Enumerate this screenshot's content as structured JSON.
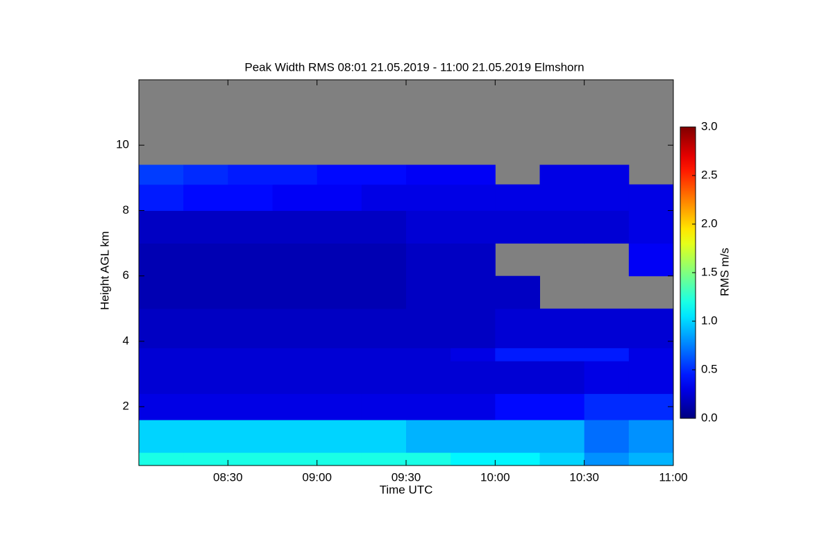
{
  "chart_data": {
    "type": "heatmap",
    "title": "Peak Width RMS   08:01 21.05.2019 - 11:00 21.05.2019 Elmshorn",
    "x_label": "Time UTC",
    "y_label": "Height AGL km",
    "xlim": [
      "08:00",
      "11:00"
    ],
    "xticks": [
      "08:30",
      "09:00",
      "09:30",
      "10:00",
      "10:30",
      "11:00"
    ],
    "ylim": [
      0.2,
      12.0
    ],
    "yticks": [
      2,
      4,
      6,
      8,
      10
    ],
    "x_edges": [
      "08:00",
      "08:15",
      "08:30",
      "08:45",
      "09:00",
      "09:15",
      "09:30",
      "09:45",
      "10:00",
      "10:15",
      "10:30",
      "10:45",
      "11:00"
    ],
    "y_edges": [
      0.2,
      0.6,
      1.6,
      2.4,
      3.4,
      3.8,
      5.0,
      6.0,
      7.0,
      8.0,
      8.8,
      9.4,
      12.0
    ],
    "z": [
      [
        1.2,
        1.2,
        1.2,
        1.2,
        1.2,
        1.2,
        1.2,
        1.1,
        1.1,
        1.0,
        0.8,
        0.9
      ],
      [
        1.0,
        1.0,
        1.0,
        1.0,
        1.0,
        1.0,
        0.9,
        0.9,
        0.9,
        0.9,
        0.7,
        0.8
      ],
      [
        0.3,
        0.3,
        0.3,
        0.3,
        0.3,
        0.3,
        0.3,
        0.3,
        0.4,
        0.4,
        0.5,
        0.5
      ],
      [
        0.25,
        0.25,
        0.25,
        0.25,
        0.25,
        0.25,
        0.25,
        0.25,
        0.25,
        0.25,
        0.3,
        0.3
      ],
      [
        0.25,
        0.25,
        0.25,
        0.25,
        0.25,
        0.25,
        0.25,
        0.3,
        0.45,
        0.45,
        0.45,
        0.3
      ],
      [
        0.2,
        0.2,
        0.2,
        0.2,
        0.2,
        0.2,
        0.2,
        0.2,
        0.25,
        0.25,
        0.25,
        0.25
      ],
      [
        0.15,
        0.15,
        0.15,
        0.15,
        0.15,
        0.15,
        0.2,
        0.2,
        0.2,
        null,
        null,
        null
      ],
      [
        0.15,
        0.15,
        0.15,
        0.15,
        0.15,
        0.15,
        0.2,
        0.2,
        null,
        null,
        null,
        0.35
      ],
      [
        0.2,
        0.2,
        0.2,
        0.2,
        0.2,
        0.2,
        0.25,
        0.25,
        0.25,
        0.25,
        0.25,
        0.3
      ],
      [
        0.45,
        0.4,
        0.4,
        0.35,
        0.35,
        0.3,
        0.3,
        0.3,
        0.3,
        0.3,
        0.3,
        0.3
      ],
      [
        0.55,
        0.5,
        0.45,
        0.45,
        0.4,
        0.4,
        0.35,
        0.35,
        null,
        0.3,
        0.3,
        null
      ],
      [
        null,
        null,
        null,
        null,
        null,
        null,
        null,
        null,
        null,
        null,
        null,
        null
      ]
    ],
    "colormap": "jet",
    "missing_color": "#808080",
    "colorbar": {
      "label": "RMS m/s",
      "lim": [
        0.0,
        3.0
      ],
      "ticks": [
        {
          "value": 0,
          "label": "0.0"
        },
        {
          "value": 0.5,
          "label": "0.5"
        },
        {
          "value": 1,
          "label": "1.0"
        },
        {
          "value": 1.5,
          "label": "1.5"
        },
        {
          "value": 2,
          "label": "2.0"
        },
        {
          "value": 2.5,
          "label": "2.5"
        },
        {
          "value": 3,
          "label": "3.0"
        }
      ]
    }
  }
}
